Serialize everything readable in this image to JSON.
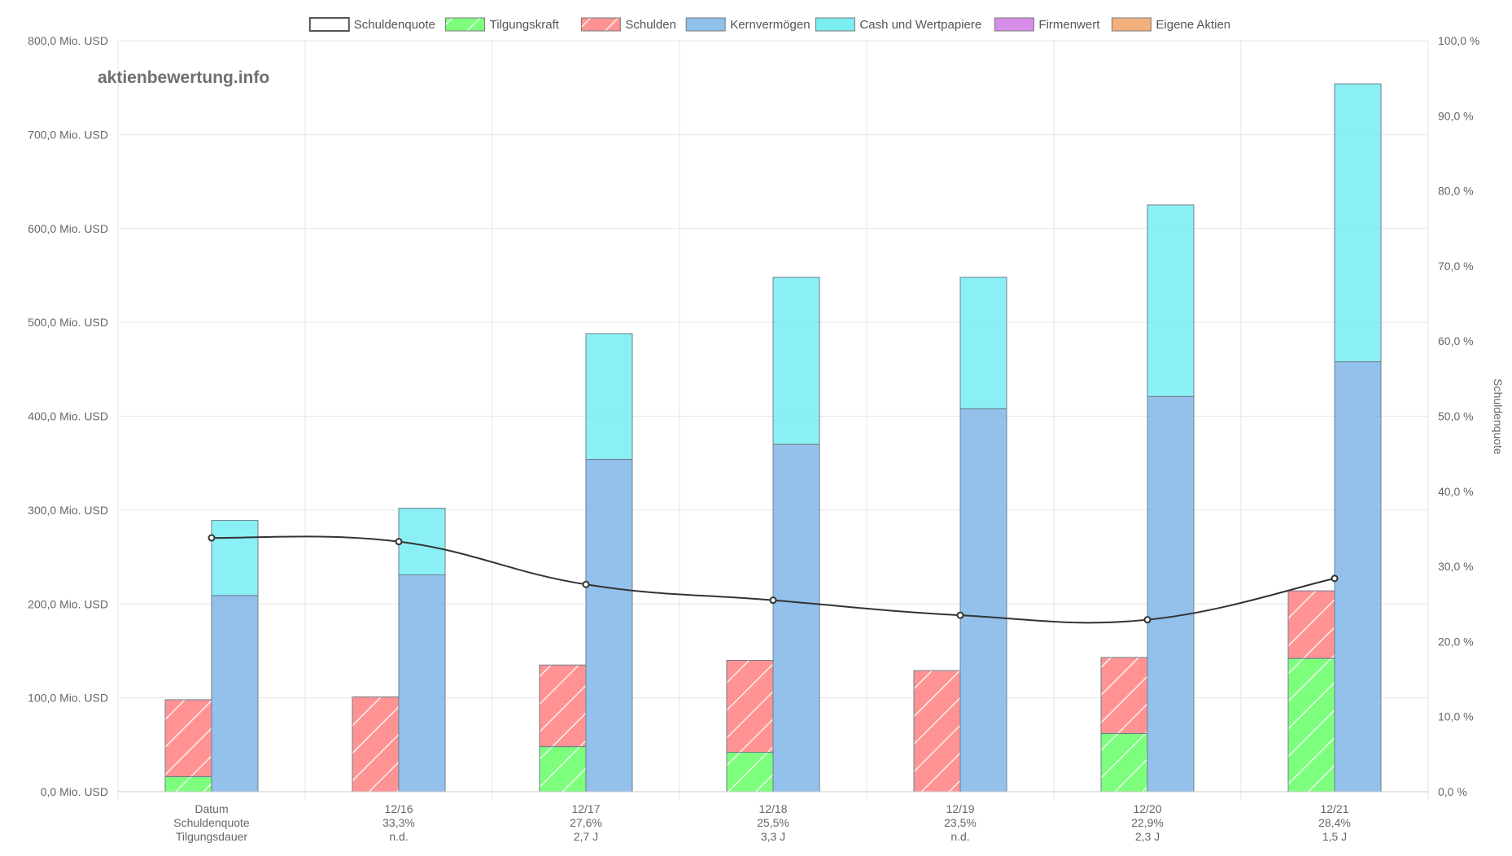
{
  "watermark": "aktienbewertung.info",
  "chart_data": {
    "type": "bar",
    "categories": [
      "12/16",
      "12/17",
      "12/18",
      "12/19",
      "12/20",
      "12/21"
    ],
    "first_column_label": "Datum",
    "legend": [
      {
        "name": "Schuldenquote",
        "color": "#ffffff",
        "border": "#555555",
        "hatch": false
      },
      {
        "name": "Tilgungskraft",
        "color": "#66ff66",
        "border": "#777777",
        "hatch": true
      },
      {
        "name": "Schulden",
        "color": "#ff8080",
        "border": "#777777",
        "hatch": true
      },
      {
        "name": "Kernvermögen",
        "color": "#8fc1ea",
        "border": "#777777",
        "hatch": false
      },
      {
        "name": "Cash und Wertpapiere",
        "color": "#7aeef2",
        "border": "#777777",
        "hatch": false
      },
      {
        "name": "Firmenwert",
        "color": "#d88de8",
        "border": "#777777",
        "hatch": false
      },
      {
        "name": "Eigene Aktien",
        "color": "#f4b07c",
        "border": "#777777",
        "hatch": false
      }
    ],
    "row_labels": [
      "Datum",
      "Schuldenquote",
      "Tilgungsdauer"
    ],
    "schuldenquote_labels": [
      "33,3%",
      "27,6%",
      "25,5%",
      "23,5%",
      "22,9%",
      "28,4%"
    ],
    "tilgungsdauer_labels": [
      "n.d.",
      "2,7 J",
      "3,3 J",
      "n.d.",
      "2,3 J",
      "1,5 J"
    ],
    "leading_slot": {
      "tilgungskraft": 16,
      "schulden_total": 98,
      "kernvermoegen": 209,
      "cash_total": 289,
      "schuldenquote": 33.8
    },
    "series": [
      {
        "name": "Tilgungskraft",
        "values": [
          0,
          48,
          42,
          0,
          62,
          142
        ]
      },
      {
        "name": "Schulden",
        "values": [
          101,
          135,
          140,
          129,
          143,
          214
        ]
      },
      {
        "name": "Kernvermögen",
        "values": [
          231,
          354,
          370,
          408,
          421,
          458
        ]
      },
      {
        "name": "Cash und Wertpapiere",
        "values": [
          302,
          488,
          548,
          548,
          625,
          754
        ]
      },
      {
        "name": "Schuldenquote",
        "values": [
          33.3,
          27.6,
          25.5,
          23.5,
          22.9,
          28.4
        ]
      }
    ],
    "y_left": {
      "min": 0,
      "max": 800,
      "step": 100,
      "tick_labels": [
        "0,0 Mio. USD",
        "100,0 Mio. USD",
        "200,0 Mio. USD",
        "300,0 Mio. USD",
        "400,0 Mio. USD",
        "500,0 Mio. USD",
        "600,0 Mio. USD",
        "700,0 Mio. USD",
        "800,0 Mio. USD"
      ]
    },
    "y_right": {
      "min": 0,
      "max": 100,
      "step": 10,
      "title": "Schuldenquote",
      "tick_labels": [
        "0,0 %",
        "10,0 %",
        "20,0 %",
        "30,0 %",
        "40,0 %",
        "50,0 %",
        "60,0 %",
        "70,0 %",
        "80,0 %",
        "90,0 %",
        "100,0 %"
      ]
    },
    "grid": true,
    "legend_position": "top-center"
  }
}
